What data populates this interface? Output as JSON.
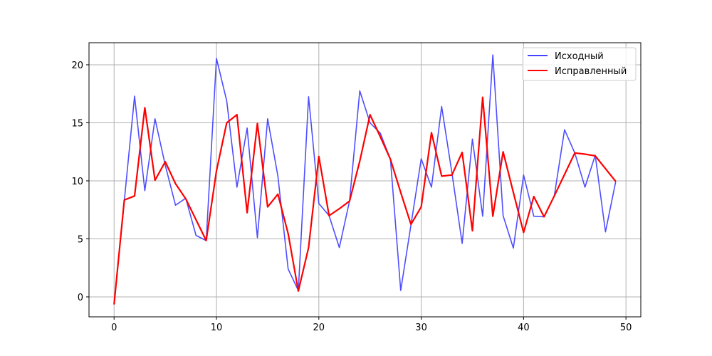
{
  "chart_data": {
    "type": "line",
    "title": "",
    "xlabel": "",
    "ylabel": "",
    "xlim": [
      -2.45,
      51.45
    ],
    "ylim": [
      -1.72,
      21.9
    ],
    "xticks": [
      0,
      10,
      20,
      30,
      40,
      50
    ],
    "yticks": [
      0,
      5,
      10,
      15,
      20
    ],
    "grid": true,
    "legend_position": "top-right",
    "x": [
      0,
      1,
      2,
      3,
      4,
      5,
      6,
      7,
      8,
      9,
      10,
      11,
      12,
      13,
      14,
      15,
      16,
      17,
      18,
      19,
      20,
      21,
      22,
      23,
      24,
      25,
      26,
      27,
      28,
      29,
      30,
      31,
      32,
      33,
      34,
      35,
      36,
      37,
      38,
      39,
      40,
      41,
      42,
      43,
      44,
      45,
      46,
      47,
      48,
      49
    ],
    "series": [
      {
        "name": "Исходный",
        "color": "#4444ff",
        "values": [
          -0.65,
          8.3,
          17.3,
          9.15,
          15.35,
          11.35,
          7.9,
          8.5,
          5.3,
          4.85,
          20.55,
          16.9,
          9.45,
          14.55,
          5.1,
          15.35,
          10.4,
          2.4,
          0.55,
          17.25,
          8.05,
          7.0,
          4.25,
          8.25,
          17.75,
          15.0,
          14.1,
          11.85,
          0.55,
          6.2,
          11.9,
          9.45,
          16.4,
          10.7,
          4.6,
          13.6,
          6.95,
          20.85,
          7.0,
          4.2,
          10.5,
          6.95,
          6.9,
          8.7,
          14.4,
          12.4,
          9.45,
          12.2,
          5.6,
          9.95
        ]
      },
      {
        "name": "Исправленный",
        "color": "#ff0000",
        "values": [
          -0.65,
          8.35,
          8.7,
          16.3,
          10.05,
          11.65,
          9.75,
          8.45,
          6.65,
          4.85,
          10.85,
          15.0,
          15.7,
          7.25,
          14.95,
          7.75,
          8.85,
          5.45,
          0.5,
          4.25,
          12.1,
          7.0,
          7.6,
          8.25,
          11.7,
          15.7,
          13.8,
          11.85,
          9.0,
          6.25,
          7.75,
          14.15,
          10.4,
          10.5,
          12.45,
          5.7,
          17.2,
          6.95,
          12.5,
          9.0,
          5.55,
          8.65,
          6.9,
          8.7,
          10.55,
          12.4,
          12.3,
          12.15,
          11.05,
          9.95
        ]
      }
    ]
  }
}
